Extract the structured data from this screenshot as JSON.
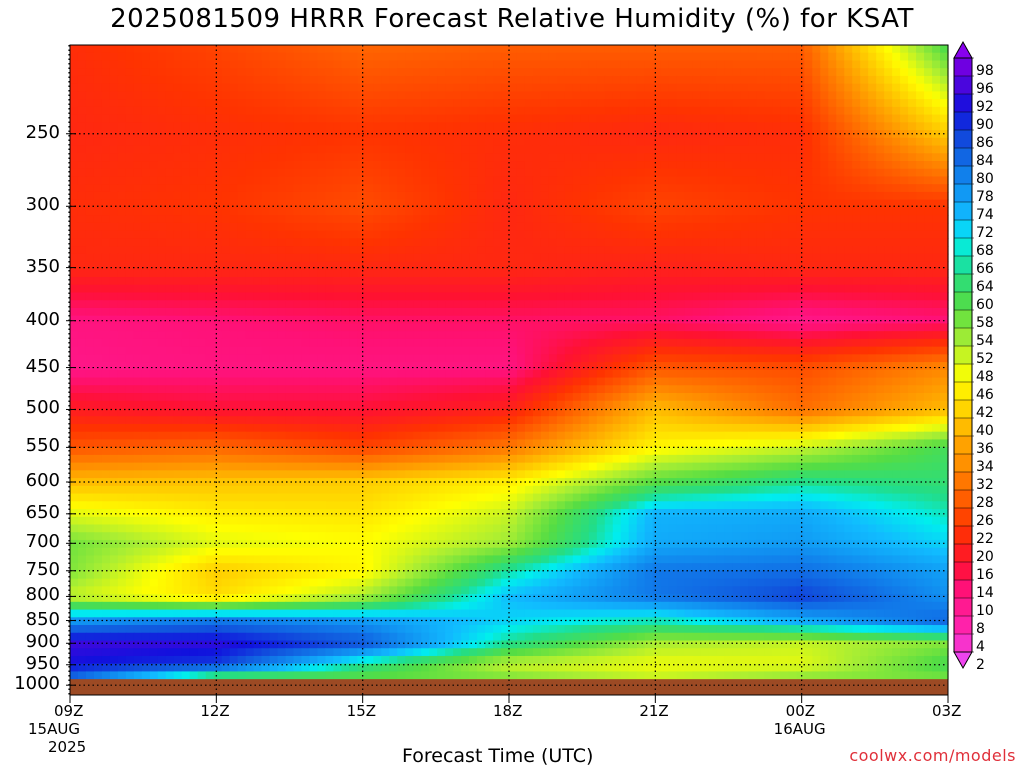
{
  "title": "2025081509 HRRR Forecast Relative Humidity (%) for KSAT",
  "credit": "coolwx.com/models",
  "chart_data": {
    "type": "heatmap",
    "title": "2025081509 HRRR Forecast Relative Humidity (%) for KSAT",
    "xlabel": "Forecast Time (UTC)",
    "ylabel": "",
    "x_ticks": [
      "09Z",
      "12Z",
      "15Z",
      "18Z",
      "21Z",
      "00Z",
      "03Z"
    ],
    "x_hours": [
      0,
      3,
      6,
      9,
      12,
      15,
      18
    ],
    "x_sublabels": [
      {
        "at": "09Z",
        "lines": [
          "15AUG",
          "2025"
        ]
      },
      {
        "at": "00Z",
        "lines": [
          "16AUG"
        ]
      }
    ],
    "y_ticks": [
      250,
      300,
      350,
      400,
      450,
      500,
      550,
      600,
      650,
      700,
      750,
      800,
      850,
      900,
      950,
      1000
    ],
    "y_label_text": [
      "250",
      "300",
      "350",
      "400",
      "450",
      "500",
      "550",
      "600",
      "650",
      "700",
      "750",
      "800",
      "850",
      "900",
      "950",
      "1000"
    ],
    "y_range": [
      200,
      1025
    ],
    "y_scale": "log",
    "ground_level_hpa": 985,
    "colorbar_levels": [
      2,
      4,
      8,
      10,
      14,
      16,
      20,
      22,
      26,
      28,
      32,
      34,
      36,
      40,
      42,
      46,
      48,
      52,
      54,
      58,
      60,
      64,
      66,
      68,
      72,
      74,
      78,
      80,
      84,
      86,
      90,
      92,
      96,
      98
    ],
    "colorbar_labels": [
      "2",
      "4",
      "8",
      "10",
      "14",
      "16",
      "20",
      "22",
      "26",
      "28",
      "32",
      "34",
      "36",
      "40",
      "42",
      "46",
      "48",
      "52",
      "54",
      "58",
      "60",
      "64",
      "66",
      "68",
      "72",
      "74",
      "78",
      "80",
      "84",
      "86",
      "90",
      "92",
      "96",
      "98"
    ],
    "grid": true,
    "pressure_levels": [
      200,
      250,
      300,
      350,
      400,
      450,
      500,
      550,
      600,
      650,
      700,
      750,
      800,
      850,
      900,
      950,
      980
    ],
    "hours": [
      0,
      3,
      6,
      9,
      12,
      15,
      18
    ],
    "rh": [
      [
        21,
        24,
        28,
        27,
        27,
        27,
        60
      ],
      [
        20,
        21,
        22,
        21,
        20,
        21,
        40
      ],
      [
        21,
        22,
        25,
        20,
        24,
        22,
        22
      ],
      [
        20,
        20,
        20,
        20,
        19,
        20,
        20
      ],
      [
        11,
        12,
        13,
        13,
        13,
        10,
        12
      ],
      [
        10,
        11,
        11,
        11,
        26,
        25,
        32
      ],
      [
        18,
        16,
        16,
        19,
        38,
        29,
        38
      ],
      [
        26,
        28,
        24,
        30,
        45,
        50,
        60
      ],
      [
        38,
        39,
        40,
        44,
        58,
        64,
        62
      ],
      [
        48,
        44,
        43,
        50,
        73,
        74,
        66
      ],
      [
        56,
        48,
        46,
        53,
        74,
        76,
        70
      ],
      [
        55,
        40,
        45,
        65,
        80,
        81,
        75
      ],
      [
        50,
        42,
        52,
        72,
        80,
        86,
        77
      ],
      [
        76,
        80,
        76,
        70,
        66,
        74,
        82
      ],
      [
        93,
        92,
        84,
        64,
        52,
        50,
        55
      ],
      [
        90,
        86,
        64,
        50,
        47,
        48,
        60
      ],
      [
        82,
        60,
        58,
        55,
        50,
        54,
        56
      ]
    ]
  }
}
